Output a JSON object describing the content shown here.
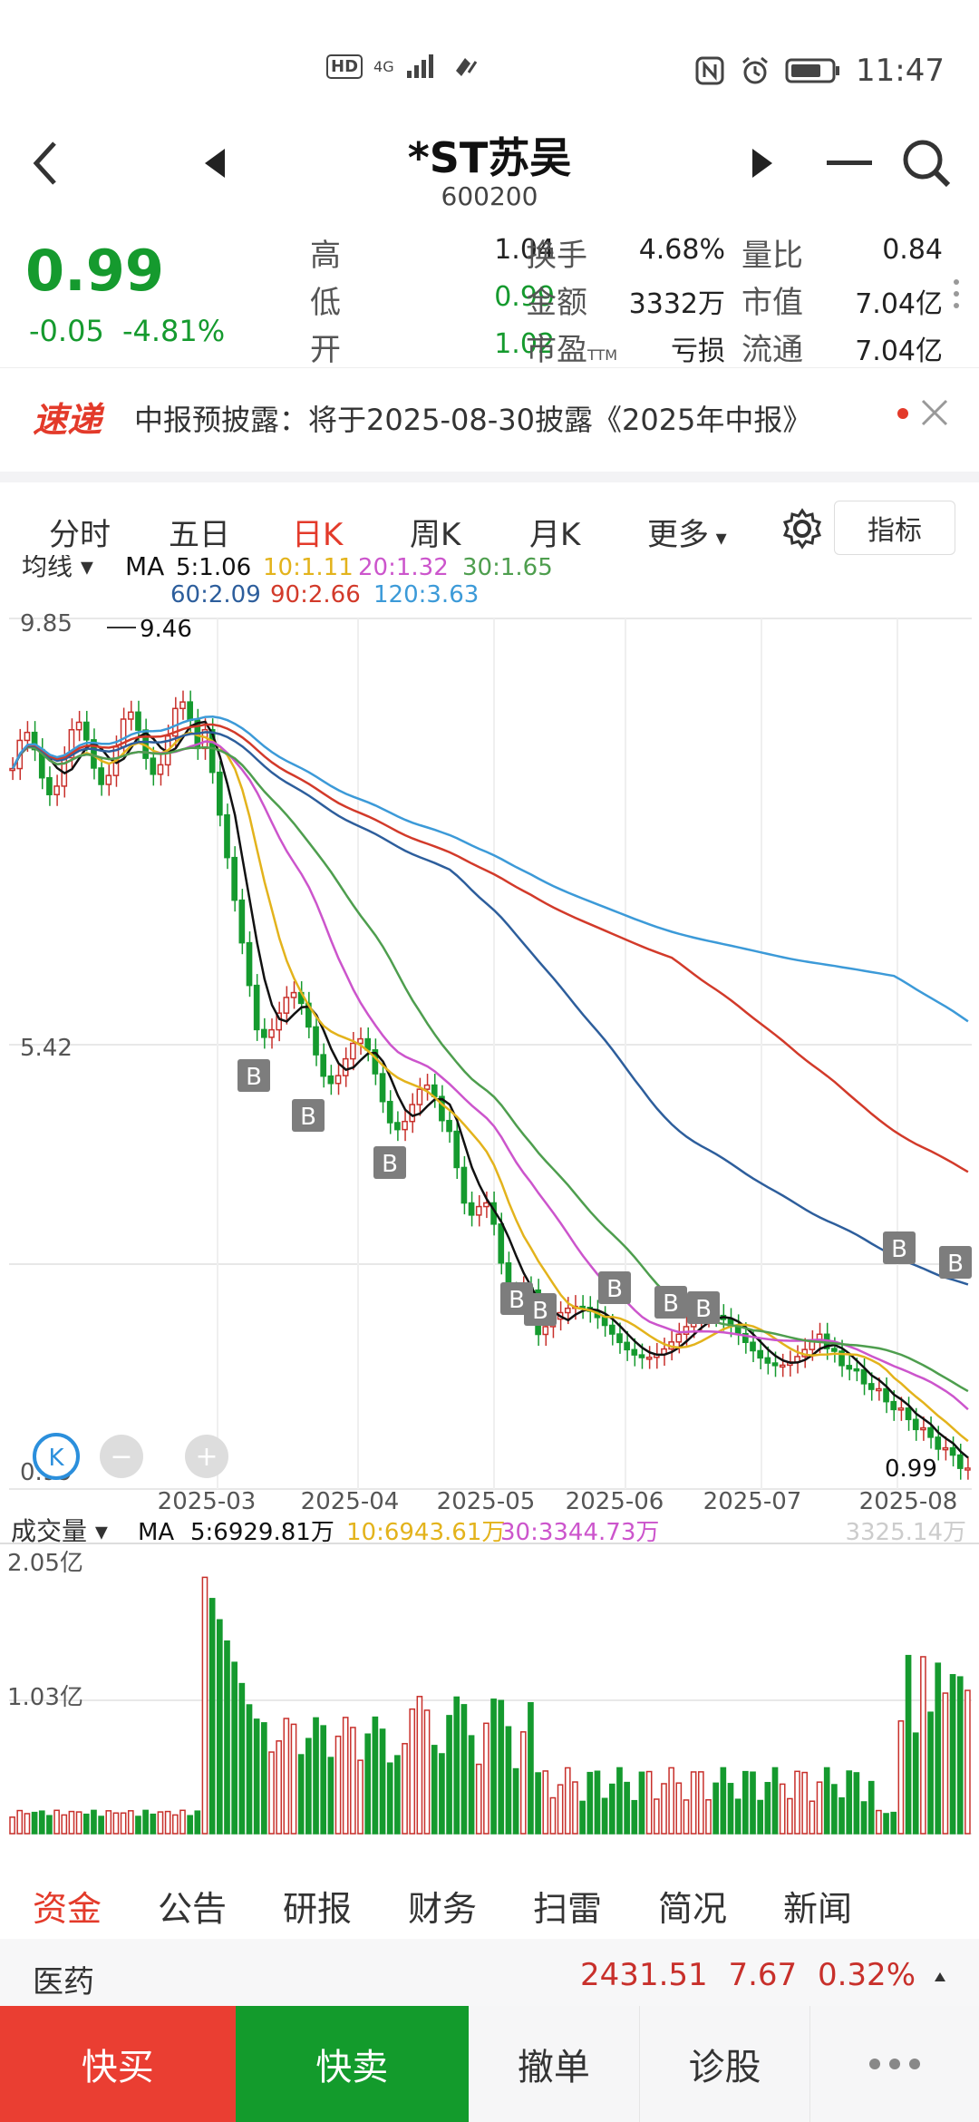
{
  "status": {
    "time": "11:47",
    "hd": "HD",
    "net": "4G"
  },
  "header": {
    "title": "*ST苏吴",
    "code": "600200"
  },
  "quote": {
    "price": "0.99",
    "change": "-0.05",
    "change_pct": "-4.81%",
    "fields": [
      {
        "label": "高",
        "value": "1.04",
        "color": "#222222"
      },
      {
        "label": "换手",
        "value": "4.68%",
        "color": "#222222"
      },
      {
        "label": "量比",
        "value": "0.84",
        "color": "#222222"
      },
      {
        "label": "低",
        "value": "0.99",
        "color": "#159a2e"
      },
      {
        "label": "金额",
        "value": "3332万",
        "color": "#222222"
      },
      {
        "label": "市值",
        "value": "7.04亿",
        "color": "#222222"
      },
      {
        "label": "开",
        "value": "1.02",
        "color": "#159a2e"
      },
      {
        "label": "市盈",
        "label_sub": "TTM",
        "value": "亏损",
        "color": "#222222"
      },
      {
        "label": "流通",
        "value": "7.04亿",
        "color": "#222222"
      }
    ]
  },
  "news": {
    "badge": "速递",
    "text": "中报预披露：将于2025-08-30披露《2025年中报》"
  },
  "tabs": [
    "分时",
    "五日",
    "日K",
    "周K",
    "月K",
    "更多"
  ],
  "active_tab": "日K",
  "indicator_button": "指标",
  "ma_legend": {
    "selector": "均线",
    "label": "MA",
    "items": [
      {
        "text": "5:1.06",
        "color": "#111111"
      },
      {
        "text": "10:1.11",
        "color": "#e3b31c"
      },
      {
        "text": "20:1.32",
        "color": "#cc55cc"
      },
      {
        "text": "30:1.65",
        "color": "#4e9e4e"
      },
      {
        "text": "60:2.09",
        "color": "#2d5e9c"
      },
      {
        "text": "90:2.66",
        "color": "#d23a2a"
      },
      {
        "text": "120:3.63",
        "color": "#3c9ad8"
      }
    ]
  },
  "chart_labels": {
    "y_top": "9.85",
    "y_mid": "5.42",
    "y_bottom": "0.99",
    "max_marker": "9.46",
    "last_price": "0.99",
    "buy_marker": "B",
    "k_badge": "K",
    "zoom_out": "−",
    "zoom_in": "+"
  },
  "x_ticks": [
    "2025-03",
    "2025-04",
    "2025-05",
    "2025-06",
    "2025-07",
    "2025-08"
  ],
  "volume_legend": {
    "selector": "成交量",
    "label": "MA",
    "items": [
      {
        "text": "5:6929.81万",
        "color": "#111111"
      },
      {
        "text": "10:6943.61万",
        "color": "#e3b31c"
      },
      {
        "text": "30:3344.73万",
        "color": "#cc55cc"
      }
    ],
    "current": "3325.14万",
    "y_top": "2.05亿",
    "y_mid": "1.03亿"
  },
  "bottom_tabs": [
    "资金",
    "公告",
    "研报",
    "财务",
    "扫雷",
    "简况",
    "新闻"
  ],
  "active_bottom_tab": "资金",
  "sector": {
    "name": "医药",
    "value": "2431.51",
    "change": "7.67",
    "pct": "0.32%"
  },
  "actions": {
    "buy": "快买",
    "sell": "快卖",
    "cancel": "撤单",
    "diagnose": "诊股"
  },
  "colors": {
    "up": "#c8302b",
    "down": "#159a2e",
    "accent": "#e33a2a"
  }
}
